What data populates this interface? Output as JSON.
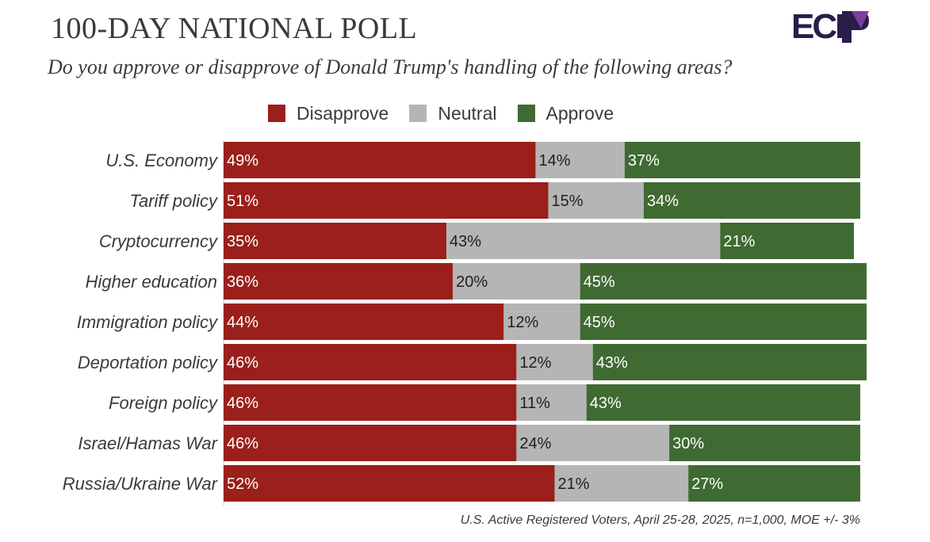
{
  "header": {
    "title": "100-DAY NATIONAL POLL",
    "subtitle": "Do you approve or disapprove of Donald Trump's handling of the following areas?",
    "logo_text": "ECP"
  },
  "footnote": "U.S. Active Registered Voters, April 25-28, 2025, n=1,000, MOE +/- 3%",
  "colors": {
    "disapprove": "#9b1f1b",
    "neutral": "#b5b5b5",
    "approve": "#3f6a32",
    "logo": "#2a1d4a",
    "logo_accent": "#7a3fa0"
  },
  "chart_data": {
    "type": "bar",
    "orientation": "horizontal",
    "stacked": true,
    "title": "100-DAY NATIONAL POLL",
    "subtitle": "Do you approve or disapprove of Donald Trump's handling of the following areas?",
    "legend_position": "top",
    "grid": false,
    "xlim": [
      0,
      100
    ],
    "categories": [
      "U.S. Economy",
      "Tariff policy",
      "Cryptocurrency",
      "Higher education",
      "Immigration policy",
      "Deportation policy",
      "Foreign policy",
      "Israel/Hamas War",
      "Russia/Ukraine War"
    ],
    "series": [
      {
        "name": "Disapprove",
        "color": "#9b1f1b",
        "values": [
          49,
          51,
          35,
          36,
          44,
          46,
          46,
          46,
          52
        ]
      },
      {
        "name": "Neutral",
        "color": "#b5b5b5",
        "values": [
          14,
          15,
          43,
          20,
          12,
          12,
          11,
          24,
          21
        ]
      },
      {
        "name": "Approve",
        "color": "#3f6a32",
        "values": [
          37,
          34,
          21,
          45,
          45,
          43,
          43,
          30,
          27
        ]
      }
    ],
    "unit": "%"
  }
}
